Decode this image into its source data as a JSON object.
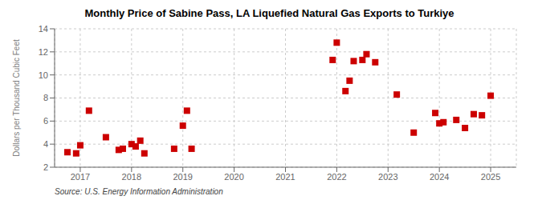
{
  "chart_data": {
    "type": "scatter",
    "title": "Monthly Price of Sabine Pass, LA Liquefied Natural Gas Exports to Turkiye",
    "ylabel": "Dollars per Thousand Cubic Feet",
    "annotation": "Source: U.S. Energy Information Administration",
    "x": [
      2016.75,
      2016.92,
      2017.0,
      2017.17,
      2017.5,
      2017.75,
      2017.83,
      2018.0,
      2018.08,
      2018.17,
      2018.25,
      2018.83,
      2019.0,
      2019.08,
      2019.17,
      2021.92,
      2022.0,
      2022.17,
      2022.25,
      2022.33,
      2022.5,
      2022.58,
      2022.75,
      2023.17,
      2023.5,
      2023.92,
      2024.0,
      2024.08,
      2024.33,
      2024.5,
      2024.67,
      2024.83,
      2025.0
    ],
    "values": [
      3.3,
      3.2,
      3.9,
      6.9,
      4.6,
      3.5,
      3.6,
      4.0,
      3.8,
      4.3,
      3.2,
      3.6,
      5.6,
      6.9,
      3.6,
      11.3,
      12.8,
      8.6,
      9.5,
      11.2,
      11.3,
      11.8,
      11.1,
      8.3,
      5.0,
      6.7,
      5.8,
      5.9,
      6.1,
      5.4,
      6.6,
      6.5,
      8.2
    ],
    "color": "#cc0000",
    "marker": "square",
    "xlim": [
      2016.5,
      2025.5
    ],
    "xticks": [
      2017,
      2018,
      2019,
      2020,
      2021,
      2022,
      2023,
      2024,
      2025
    ],
    "ylim": [
      2,
      14
    ],
    "yticks": [
      2,
      4,
      6,
      8,
      10,
      12,
      14
    ],
    "grid": true
  }
}
